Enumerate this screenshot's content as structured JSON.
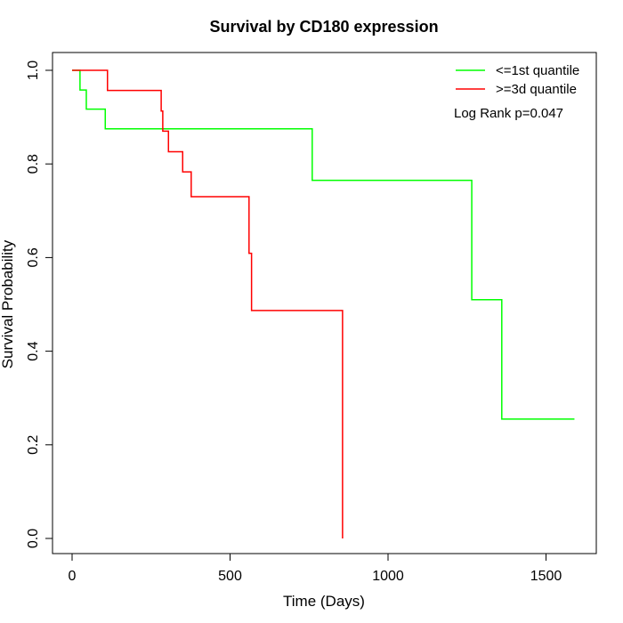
{
  "chart_data": {
    "type": "line",
    "title": "Survival by CD180 expression",
    "xlabel": "Time (Days)",
    "ylabel": "Survival Probability",
    "xlim": [
      0,
      1600
    ],
    "ylim": [
      0,
      1.0
    ],
    "x_ticks": [
      0,
      500,
      1000,
      1500
    ],
    "y_ticks": [
      0.0,
      0.2,
      0.4,
      0.6,
      0.8,
      1.0
    ],
    "x_tick_labels": [
      "0",
      "500",
      "1000",
      "1500"
    ],
    "y_tick_labels": [
      "0.0",
      "0.2",
      "0.4",
      "0.6",
      "0.8",
      "1.0"
    ],
    "step": true,
    "grid": false,
    "legend_position": "top-right",
    "annotation": "Log Rank p=0.047",
    "series": [
      {
        "name": "<=1st quantile",
        "color": "#00ff00",
        "x": [
          0,
          25,
          45,
          105,
          760,
          1265,
          1360,
          1590
        ],
        "y": [
          1.0,
          0.958,
          0.917,
          0.875,
          0.765,
          0.51,
          0.255,
          0.255
        ]
      },
      {
        "name": ">=3d quantile",
        "color": "#ff0000",
        "x": [
          0,
          112,
          282,
          287,
          305,
          350,
          377,
          560,
          568,
          856
        ],
        "y": [
          1.0,
          0.957,
          0.913,
          0.87,
          0.826,
          0.783,
          0.73,
          0.609,
          0.487,
          0.0
        ]
      }
    ]
  }
}
